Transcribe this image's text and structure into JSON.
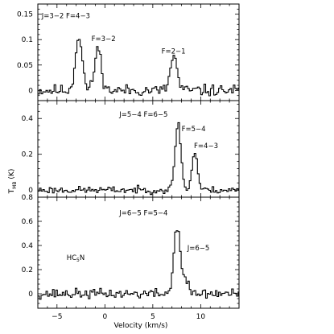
{
  "chart_data": [
    {
      "type": "line",
      "title": "",
      "xlim": [
        -7,
        14
      ],
      "ylim": [
        -0.02,
        0.17
      ],
      "yticks": [
        0,
        0.05,
        0.1,
        0.15
      ],
      "ytick_labels": [
        "0",
        "0.05",
        "0.1",
        "0.15"
      ],
      "annotations": [
        {
          "text": "J=3−2 F=4−3",
          "x": -6.6,
          "y": 0.142
        },
        {
          "text": "F=3−2",
          "x": -1.4,
          "y": 0.097
        },
        {
          "text": "F=2−1",
          "x": 5.9,
          "y": 0.073
        }
      ],
      "peaks": [
        {
          "center": -2.8,
          "height": 0.108,
          "width": 0.35
        },
        {
          "center": -0.8,
          "height": 0.083,
          "width": 0.35
        },
        {
          "center": 7.1,
          "height": 0.068,
          "width": 0.35
        }
      ],
      "noise": 0.007,
      "seed": 11
    },
    {
      "type": "line",
      "title": "",
      "xlim": [
        -7,
        14
      ],
      "ylim": [
        -0.04,
        0.5
      ],
      "yticks": [
        0,
        0.2,
        0.4
      ],
      "ytick_labels": [
        "0",
        "0.2",
        "0.4"
      ],
      "annotations": [
        {
          "text": "J=5−4 F=6−5",
          "x": 1.5,
          "y": 0.41
        },
        {
          "text": "F=5−4",
          "x": 8.0,
          "y": 0.33
        },
        {
          "text": "F=4−3",
          "x": 9.3,
          "y": 0.235
        }
      ],
      "peaks": [
        {
          "center": 7.55,
          "height": 0.375,
          "width": 0.3
        },
        {
          "center": 9.3,
          "height": 0.215,
          "width": 0.28
        }
      ],
      "noise": 0.012,
      "seed": 23
    },
    {
      "type": "line",
      "title": "",
      "xlabel": "Velocity (km/s)",
      "xlim": [
        -7,
        14
      ],
      "xticks": [
        -5,
        0,
        5,
        10
      ],
      "xtick_labels": [
        "−5",
        "0",
        "5",
        "10"
      ],
      "ylim": [
        -0.12,
        0.8
      ],
      "yticks": [
        0,
        0.2,
        0.4,
        0.6,
        0.8
      ],
      "ytick_labels": [
        "0",
        "0.2",
        "0.4",
        "0.6",
        "0.8"
      ],
      "annotations": [
        {
          "text": "J=6−5 F=5−4",
          "x": 1.5,
          "y": 0.65
        },
        {
          "text": "J=6−5",
          "x": 8.6,
          "y": 0.36
        },
        {
          "text": "HC5N",
          "x": -4.0,
          "y": 0.28
        }
      ],
      "peaks": [
        {
          "center": 7.45,
          "height": 0.56,
          "width": 0.33
        },
        {
          "center": 8.3,
          "height": 0.1,
          "width": 0.35
        }
      ],
      "noise": 0.025,
      "seed": 37
    }
  ],
  "y_axis_label": "T",
  "y_axis_label_sub": "MB",
  "y_axis_label_unit": "(K)"
}
